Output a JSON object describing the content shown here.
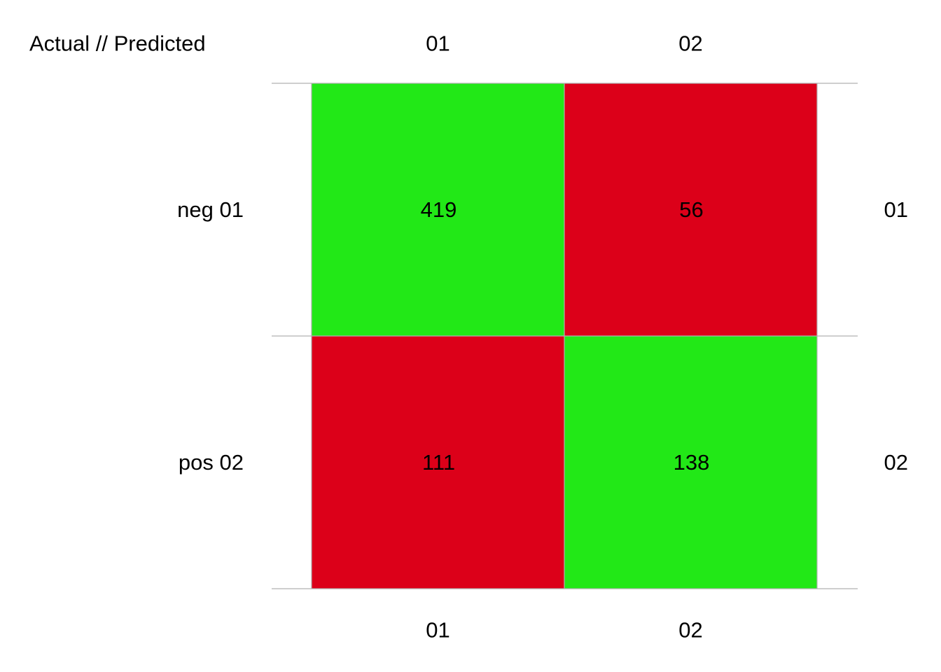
{
  "chart_data": {
    "type": "heatmap",
    "corner_label": "Actual // Predicted",
    "columns": [
      "01",
      "02"
    ],
    "rows": [
      {
        "label": "neg 01",
        "right_label": "01"
      },
      {
        "label": "pos 02",
        "right_label": "02"
      }
    ],
    "values": [
      [
        419,
        56
      ],
      [
        111,
        138
      ]
    ],
    "cell_classes": [
      [
        "correct",
        "wrong"
      ],
      [
        "wrong",
        "correct"
      ]
    ],
    "colors": {
      "correct": "#22e817",
      "wrong": "#dc0019",
      "grid": "#b0b0b0"
    },
    "legend": "none",
    "grid": true
  }
}
